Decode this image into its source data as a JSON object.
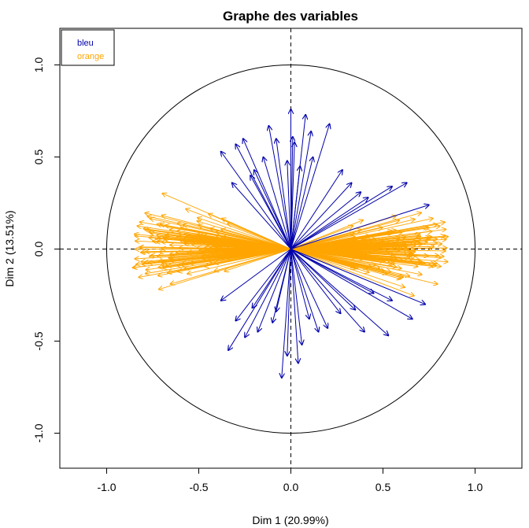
{
  "chart_data": {
    "type": "scatter",
    "title": "Graphe des variables",
    "xlabel": "Dim 1 (20.99%)",
    "ylabel": "Dim 2 (13.51%)",
    "xlim": [
      -1.25,
      1.25
    ],
    "ylim": [
      -1.2,
      1.2
    ],
    "xticks": [
      "-1.0",
      "-0.5",
      "0.0",
      "0.5",
      "1.0"
    ],
    "yticks": [
      "-1.0",
      "-0.5",
      "0.0",
      "0.5",
      "1.0"
    ],
    "xtick_values": [
      -1.0,
      -0.5,
      0.0,
      0.5,
      1.0
    ],
    "ytick_values": [
      -1.0,
      -0.5,
      0.0,
      0.5,
      1.0
    ],
    "unit_circle": true,
    "reference_lines": "dashed at x=0 and y=0",
    "legend_position": "top-left",
    "legend": [
      {
        "name": "bleu",
        "color": "#0000aa"
      },
      {
        "name": "orange",
        "color": "#ffa500"
      }
    ],
    "series": [
      {
        "name": "bleu",
        "color": "#0000aa",
        "note_vectors": "arrows from origin to (x,y)",
        "x": [
          -0.12,
          -0.08,
          0.0,
          0.01,
          0.02,
          0.08,
          0.11,
          0.21,
          -0.38,
          -0.3,
          -0.26,
          -0.2,
          -0.15,
          -0.22,
          -0.32,
          0.28,
          0.38,
          0.63,
          0.75,
          0.55,
          0.42,
          0.33,
          0.12,
          -0.02,
          0.05,
          -0.05,
          -0.02,
          0.04,
          0.15,
          0.06,
          -0.25,
          -0.34,
          -0.18,
          -0.1,
          0.27,
          0.4,
          0.53,
          0.66,
          0.73,
          0.55,
          0.2,
          0.1,
          -0.08,
          -0.21,
          -0.3,
          -0.38,
          0.35,
          0.45
        ],
        "y": [
          0.67,
          0.6,
          0.76,
          0.61,
          0.58,
          0.73,
          0.64,
          0.68,
          0.53,
          0.57,
          0.6,
          0.43,
          0.5,
          0.4,
          0.36,
          0.43,
          0.31,
          0.36,
          0.24,
          0.34,
          0.28,
          0.36,
          0.5,
          0.48,
          0.45,
          -0.7,
          -0.58,
          -0.62,
          -0.45,
          -0.52,
          -0.48,
          -0.55,
          -0.45,
          -0.4,
          -0.35,
          -0.45,
          -0.47,
          -0.38,
          -0.3,
          -0.28,
          -0.43,
          -0.38,
          -0.34,
          -0.32,
          -0.39,
          -0.28,
          -0.33,
          -0.24
        ]
      },
      {
        "name": "orange",
        "color": "#ffa500",
        "generated_count": 320,
        "description": "many loading vectors spread mainly along Dim 1"
      }
    ]
  }
}
